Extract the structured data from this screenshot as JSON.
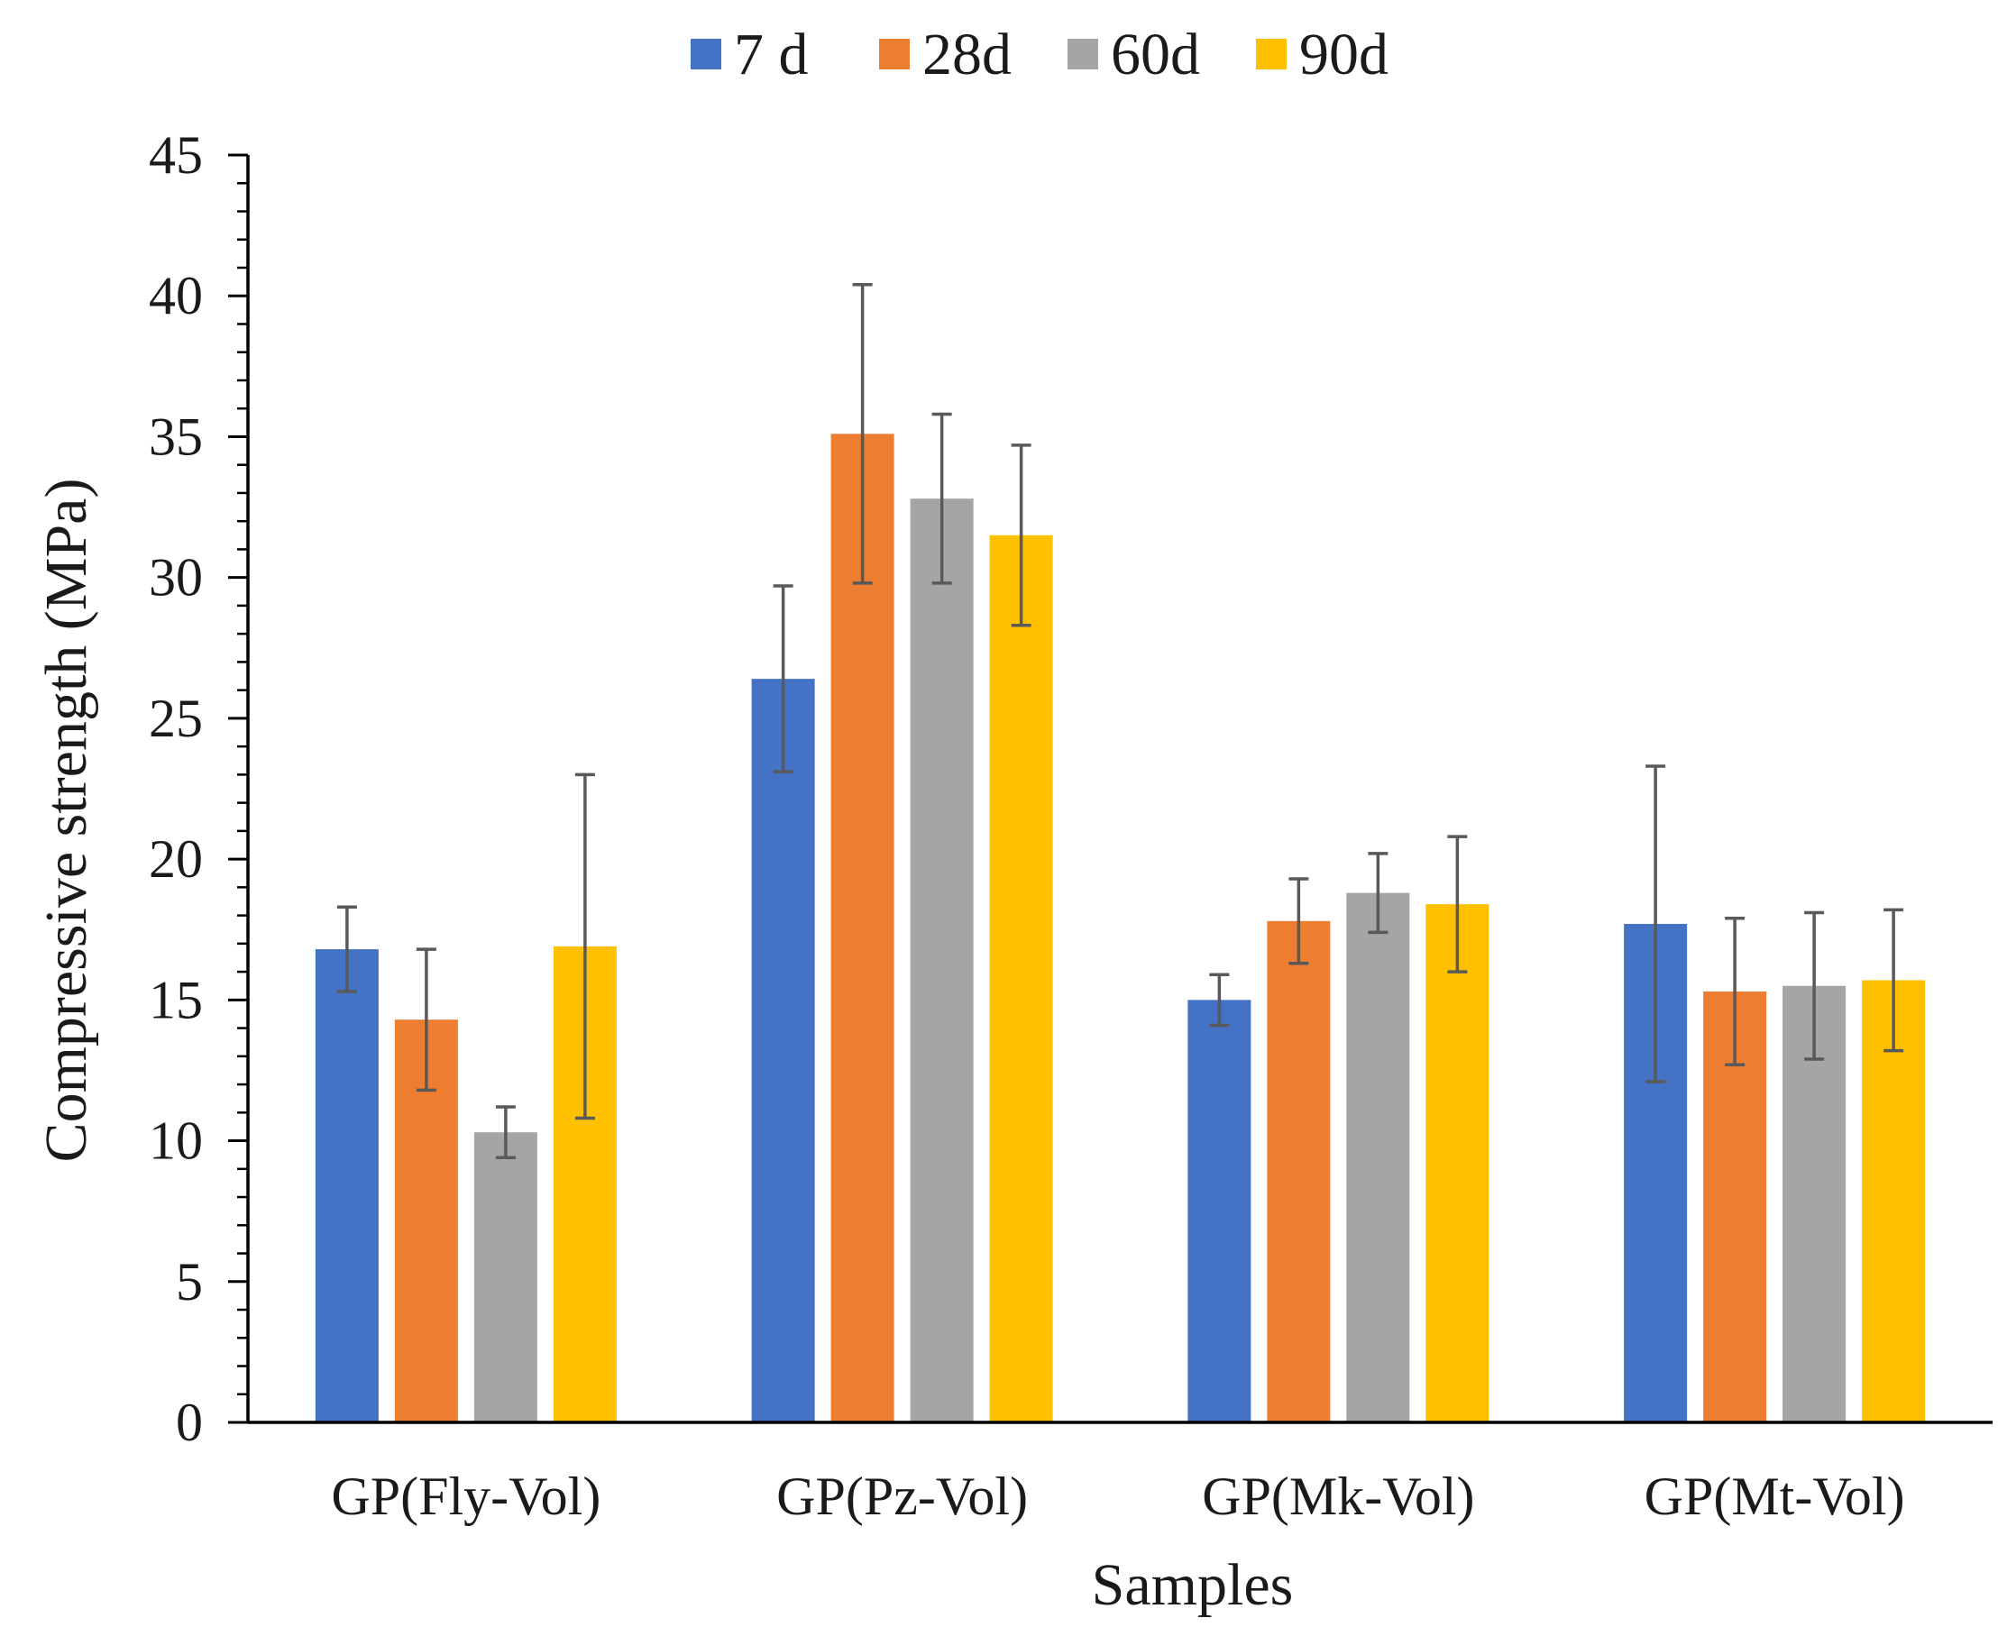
{
  "chart_data": {
    "type": "bar",
    "xlabel": "Samples",
    "ylabel": "Compressive strength (MPa)",
    "ylim": [
      0,
      45
    ],
    "yticks": [
      0,
      5,
      10,
      15,
      20,
      25,
      30,
      35,
      40,
      45
    ],
    "y_minor_step": 1,
    "grid": false,
    "legend_position": "top-center",
    "categories": [
      "GP(Fly-Vol)",
      "GP(Pz-Vol)",
      "GP(Mk-Vol)",
      "GP(Mt-Vol)"
    ],
    "series": [
      {
        "name": "7 d",
        "color": "#4472C4",
        "values": [
          16.8,
          26.4,
          15.0,
          17.7
        ],
        "errors": [
          1.5,
          3.3,
          0.9,
          5.6
        ]
      },
      {
        "name": "28d",
        "color": "#ED7D31",
        "values": [
          14.3,
          35.1,
          17.8,
          15.3
        ],
        "errors": [
          2.5,
          5.3,
          1.5,
          2.6
        ]
      },
      {
        "name": "60d",
        "color": "#A5A5A5",
        "values": [
          10.3,
          32.8,
          18.8,
          15.5
        ],
        "errors": [
          0.9,
          3.0,
          1.4,
          2.6
        ]
      },
      {
        "name": "90d",
        "color": "#FFC000",
        "values": [
          16.9,
          31.5,
          18.4,
          15.7
        ],
        "errors": [
          6.1,
          3.2,
          2.4,
          2.5
        ]
      }
    ],
    "error_bar_color": "#595959"
  }
}
